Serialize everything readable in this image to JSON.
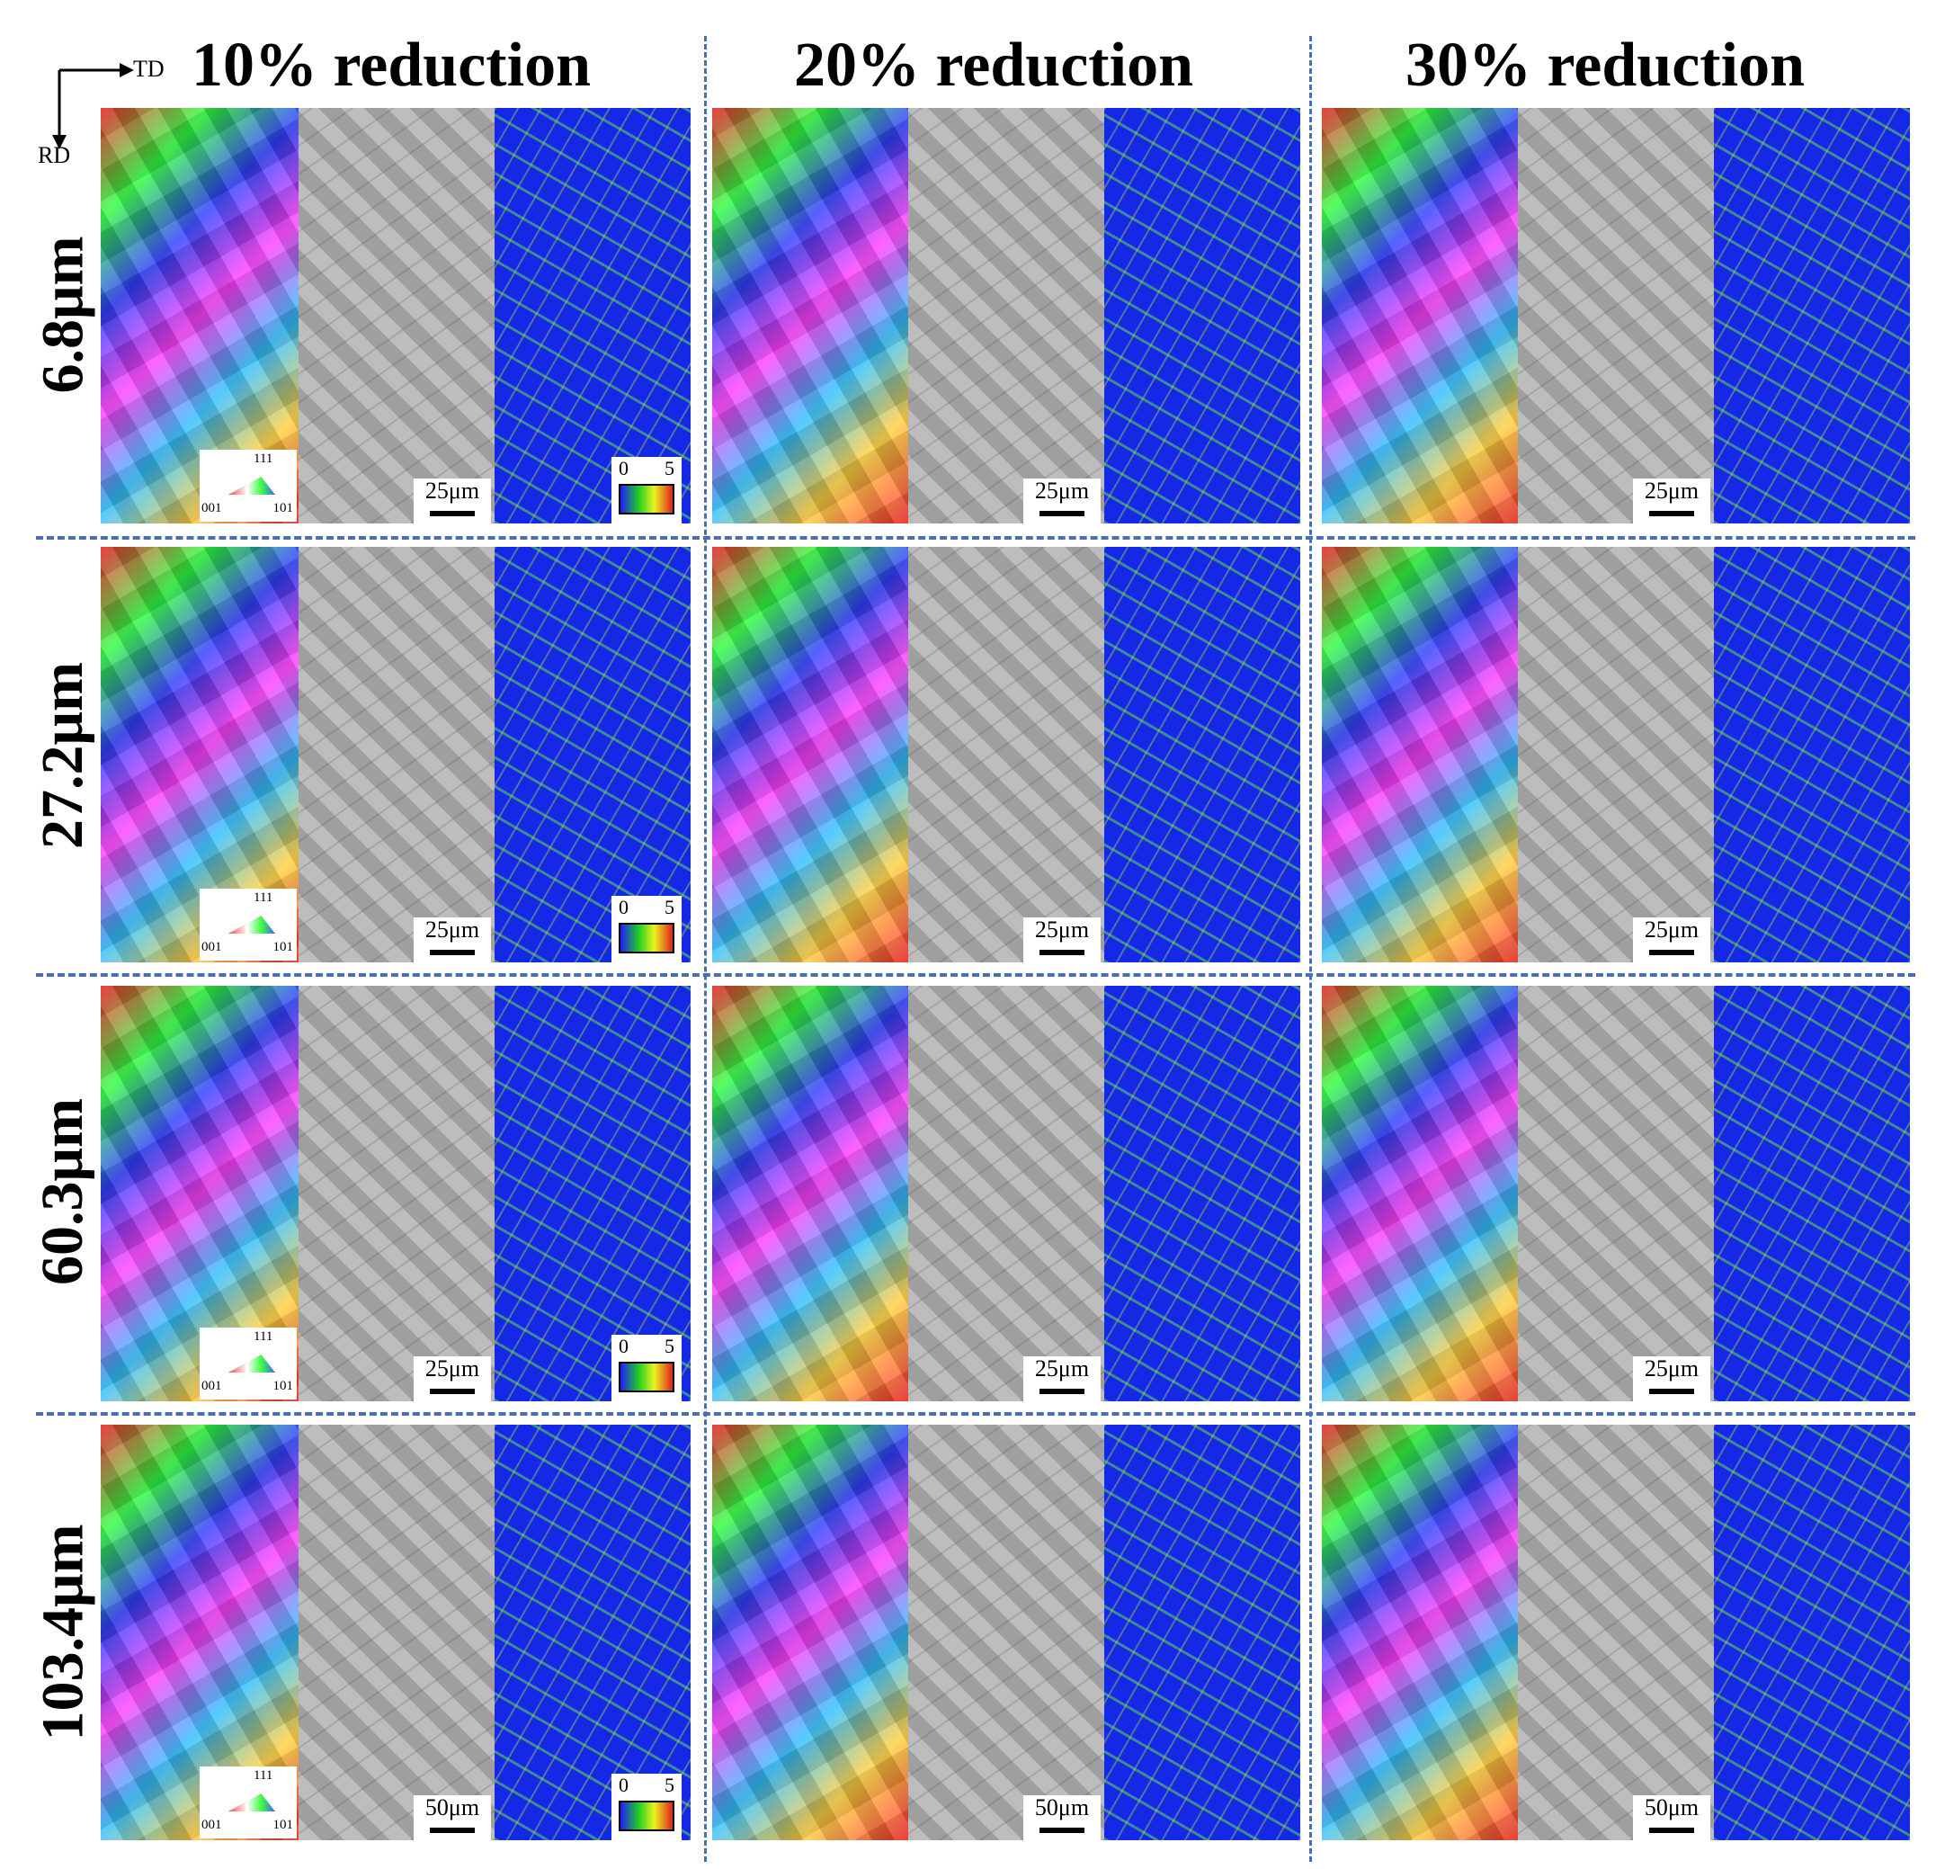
{
  "axes": {
    "horizontal": "TD",
    "vertical": "RD"
  },
  "columns": [
    {
      "label": "10% reduction"
    },
    {
      "label": "20% reduction"
    },
    {
      "label": "30% reduction"
    }
  ],
  "rows": [
    {
      "label": "6.8μm",
      "scale_bar": "25μm"
    },
    {
      "label": "27.2μm",
      "scale_bar": "25μm"
    },
    {
      "label": "60.3μm",
      "scale_bar": "25μm"
    },
    {
      "label": "103.4μm",
      "scale_bar": "50μm"
    }
  ],
  "ipf_key": {
    "top": "111",
    "left": "001",
    "right": "101"
  },
  "kam_key": {
    "min": "0",
    "max": "5"
  },
  "colors": {
    "separator": "#4a6fb0",
    "kam_background": "#1428e6"
  }
}
